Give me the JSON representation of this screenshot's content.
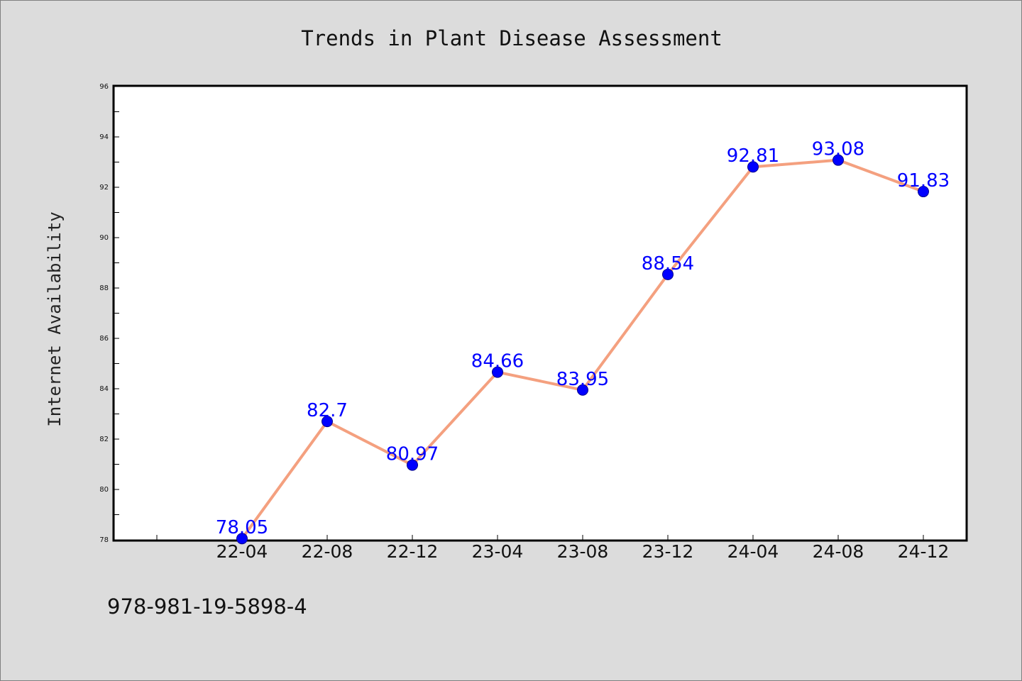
{
  "chart_data": {
    "type": "line",
    "title": "Trends in Plant Disease Assessment",
    "xlabel": "",
    "ylabel": "Internet Availability",
    "categories": [
      "22-04",
      "22-08",
      "22-12",
      "23-04",
      "23-08",
      "23-12",
      "24-04",
      "24-08",
      "24-12"
    ],
    "series": [
      {
        "values": [
          78.05,
          82.7,
          80.97,
          84.66,
          83.95,
          88.54,
          92.81,
          93.08,
          91.83
        ],
        "labels": [
          "78.05",
          "82.7",
          "80.97",
          "84.66",
          "83.95",
          "88.54",
          "92.81",
          "93.08",
          "91.83"
        ],
        "line_color": "#f4a07f",
        "marker_color": "#0000ff"
      }
    ],
    "ylim": [
      78,
      96
    ],
    "yticks": [
      78,
      80,
      82,
      84,
      86,
      88,
      90,
      92,
      94,
      96
    ],
    "grid": false,
    "legend": "none"
  },
  "footer": {
    "text": "978-981-19-5898-4"
  },
  "colors": {
    "background": "#dcdcdc",
    "plot_background": "#ffffff",
    "line": "#f4a07f",
    "marker": "#0000ff",
    "data_label": "#0000ff"
  }
}
